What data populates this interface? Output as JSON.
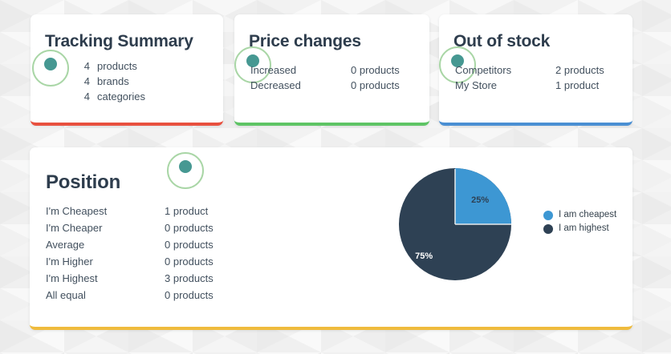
{
  "summary": {
    "title": "Tracking Summary",
    "accent": "#e8503f",
    "rows": [
      {
        "count": "4",
        "label": "products"
      },
      {
        "count": "4",
        "label": "brands"
      },
      {
        "count": "4",
        "label": "categories"
      }
    ]
  },
  "price_changes": {
    "title": "Price changes",
    "accent": "#5ec465",
    "rows": [
      {
        "label": "Increased",
        "value": "0 products"
      },
      {
        "label": "Decreased",
        "value": "0 products"
      }
    ]
  },
  "out_of_stock": {
    "title": "Out of stock",
    "accent": "#4a8fd3",
    "rows": [
      {
        "label": "Competitors",
        "value": "2 products"
      },
      {
        "label": "My Store",
        "value": "1 product"
      }
    ]
  },
  "position": {
    "title": "Position",
    "accent": "#efbb3d",
    "rows": [
      {
        "label": "I'm Cheapest",
        "value": "1 product"
      },
      {
        "label": "I'm Cheaper",
        "value": "0 products"
      },
      {
        "label": "Average",
        "value": "0 products"
      },
      {
        "label": "I'm Higher",
        "value": "0 products"
      },
      {
        "label": "I'm Highest",
        "value": "3 products"
      },
      {
        "label": "All equal",
        "value": "0 products"
      }
    ]
  },
  "chart_data": {
    "type": "pie",
    "title": "",
    "slices": [
      {
        "label": "I am cheapest",
        "value": 25,
        "display": "25%",
        "color": "#3d97d3",
        "label_color": "#2e4154"
      },
      {
        "label": "I am highest",
        "value": 75,
        "display": "75%",
        "color": "#2e4154",
        "label_color": "#ffffff"
      }
    ],
    "legend_position": "right",
    "legend": [
      "I am cheapest",
      "I am highest"
    ]
  },
  "icons": {
    "ring_color": "#a9d6a6",
    "dot_color": "#469892"
  }
}
